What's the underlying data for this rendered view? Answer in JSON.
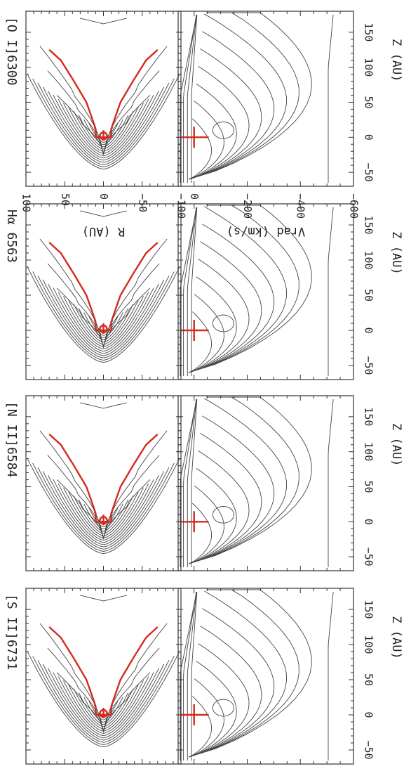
{
  "chart_data": [
    {
      "type": "contour",
      "panel": "top",
      "title": "[O I]6300",
      "ylabel": "R (AU)",
      "xlim": [
        -70,
        180
      ],
      "ylim": [
        -100,
        100
      ],
      "yticks": [
        100,
        50,
        0,
        -50,
        -100
      ]
    },
    {
      "type": "contour",
      "panel": "bottom",
      "xlabel": "Z (AU)",
      "ylabel": "Vrad (km/s)",
      "xlim": [
        -70,
        180
      ],
      "ylim": [
        -600,
        60
      ],
      "xticks": [
        -50,
        0,
        50,
        100,
        150
      ],
      "yticks": [
        0,
        -200,
        -400,
        -600
      ]
    },
    {
      "type": "contour",
      "panel": "top",
      "title": "Hα 6563",
      "xlim": [
        -70,
        180
      ],
      "ylim": [
        -100,
        100
      ]
    },
    {
      "type": "contour",
      "panel": "bottom",
      "xlabel": "Z (AU)",
      "xlim": [
        -70,
        180
      ],
      "ylim": [
        -600,
        60
      ],
      "xticks": [
        -50,
        0,
        50,
        100,
        150
      ]
    },
    {
      "type": "contour",
      "panel": "top",
      "title": "[N II]6584",
      "xlim": [
        -70,
        180
      ],
      "ylim": [
        -100,
        100
      ]
    },
    {
      "type": "contour",
      "panel": "bottom",
      "xlabel": "Z (AU)",
      "xlim": [
        -70,
        180
      ],
      "ylim": [
        -600,
        60
      ],
      "xticks": [
        -50,
        0,
        50,
        100,
        150
      ]
    },
    {
      "type": "contour",
      "panel": "top",
      "title": "[S II]6731",
      "xlim": [
        -70,
        180
      ],
      "ylim": [
        -100,
        100
      ]
    },
    {
      "type": "contour",
      "panel": "bottom",
      "xlabel": "Z (AU)",
      "xlim": [
        -70,
        180
      ],
      "ylim": [
        -600,
        60
      ],
      "xticks": [
        -50,
        0,
        50,
        100,
        150
      ]
    }
  ],
  "colors": {
    "jet": "#d42a1e",
    "contour": "#444444",
    "frame": "#333333"
  }
}
